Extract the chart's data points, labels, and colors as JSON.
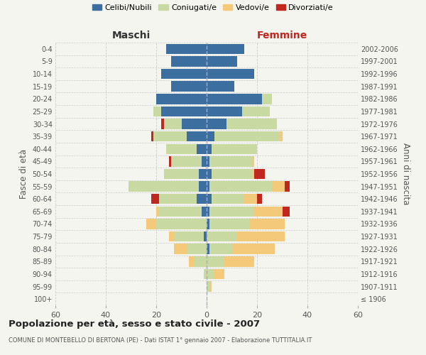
{
  "age_groups": [
    "100+",
    "95-99",
    "90-94",
    "85-89",
    "80-84",
    "75-79",
    "70-74",
    "65-69",
    "60-64",
    "55-59",
    "50-54",
    "45-49",
    "40-44",
    "35-39",
    "30-34",
    "25-29",
    "20-24",
    "15-19",
    "10-14",
    "5-9",
    "0-4"
  ],
  "birth_years": [
    "≤ 1906",
    "1907-1911",
    "1912-1916",
    "1917-1921",
    "1922-1926",
    "1927-1931",
    "1932-1936",
    "1937-1941",
    "1942-1946",
    "1947-1951",
    "1952-1956",
    "1957-1961",
    "1962-1966",
    "1967-1971",
    "1972-1976",
    "1977-1981",
    "1982-1986",
    "1987-1991",
    "1992-1996",
    "1997-2001",
    "2002-2006"
  ],
  "males": {
    "celibi": [
      0,
      0,
      0,
      0,
      0,
      1,
      0,
      2,
      4,
      3,
      3,
      2,
      4,
      8,
      10,
      18,
      20,
      14,
      18,
      14,
      16
    ],
    "coniugati": [
      0,
      0,
      1,
      5,
      8,
      12,
      20,
      17,
      15,
      28,
      14,
      12,
      12,
      13,
      7,
      3,
      0,
      0,
      0,
      0,
      0
    ],
    "vedovi": [
      0,
      0,
      0,
      2,
      5,
      2,
      4,
      1,
      0,
      0,
      0,
      0,
      0,
      0,
      0,
      0,
      0,
      0,
      0,
      0,
      0
    ],
    "divorziati": [
      0,
      0,
      0,
      0,
      0,
      0,
      0,
      0,
      3,
      0,
      0,
      1,
      0,
      1,
      1,
      0,
      0,
      0,
      0,
      0,
      0
    ]
  },
  "females": {
    "nubili": [
      0,
      0,
      0,
      0,
      1,
      0,
      1,
      1,
      2,
      1,
      2,
      1,
      2,
      3,
      8,
      14,
      22,
      11,
      19,
      12,
      15
    ],
    "coniugate": [
      0,
      1,
      3,
      7,
      9,
      12,
      16,
      18,
      13,
      25,
      16,
      17,
      18,
      26,
      20,
      11,
      4,
      0,
      0,
      0,
      0
    ],
    "vedove": [
      0,
      1,
      4,
      12,
      17,
      19,
      14,
      11,
      5,
      5,
      1,
      1,
      0,
      1,
      0,
      0,
      0,
      0,
      0,
      0,
      0
    ],
    "divorziate": [
      0,
      0,
      0,
      0,
      0,
      0,
      0,
      3,
      2,
      2,
      4,
      0,
      0,
      0,
      0,
      0,
      0,
      0,
      0,
      0,
      0
    ]
  },
  "colors": {
    "celibi_nubili": "#3d6ea0",
    "coniugati": "#c8d9a2",
    "vedovi": "#f5c97a",
    "divorziati": "#c0271e"
  },
  "title": "Popolazione per età, sesso e stato civile - 2007",
  "subtitle": "COMUNE DI MONTEBELLO DI BERTONA (PE) - Dati ISTAT 1° gennaio 2007 - Elaborazione TUTTITALIA.IT",
  "xlabel_left": "Maschi",
  "xlabel_right": "Femmine",
  "ylabel_left": "Fasce di età",
  "ylabel_right": "Anni di nascita",
  "xlim": 60,
  "legend_labels": [
    "Celibi/Nubili",
    "Coniugati/e",
    "Vedovi/e",
    "Divorziati/e"
  ],
  "background_color": "#f5f5f0"
}
